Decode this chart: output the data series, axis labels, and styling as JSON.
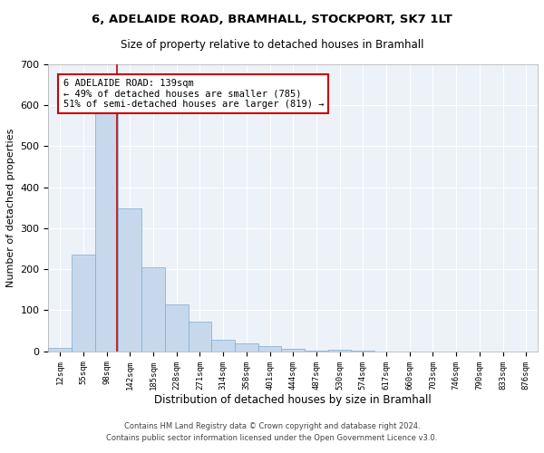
{
  "title": "6, ADELAIDE ROAD, BRAMHALL, STOCKPORT, SK7 1LT",
  "subtitle": "Size of property relative to detached houses in Bramhall",
  "xlabel": "Distribution of detached houses by size in Bramhall",
  "ylabel": "Number of detached properties",
  "bar_color": "#c8d8ec",
  "bar_edge_color": "#7aaad0",
  "background_color": "#edf2f9",
  "grid_color": "#ffffff",
  "tick_labels": [
    "12sqm",
    "55sqm",
    "98sqm",
    "142sqm",
    "185sqm",
    "228sqm",
    "271sqm",
    "314sqm",
    "358sqm",
    "401sqm",
    "444sqm",
    "487sqm",
    "530sqm",
    "574sqm",
    "617sqm",
    "660sqm",
    "703sqm",
    "746sqm",
    "790sqm",
    "833sqm",
    "876sqm"
  ],
  "bar_heights": [
    8,
    235,
    580,
    348,
    205,
    115,
    72,
    28,
    18,
    12,
    5,
    2,
    4,
    1,
    0,
    0,
    0,
    0,
    0,
    0,
    0
  ],
  "ylim": [
    0,
    700
  ],
  "yticks": [
    0,
    100,
    200,
    300,
    400,
    500,
    600,
    700
  ],
  "annotation_text": "6 ADELAIDE ROAD: 139sqm\n← 49% of detached houses are smaller (785)\n51% of semi-detached houses are larger (819) →",
  "annotation_box_color": "#ffffff",
  "annotation_box_edge_color": "#cc0000",
  "property_line_color": "#cc0000",
  "footer_line1": "Contains HM Land Registry data © Crown copyright and database right 2024.",
  "footer_line2": "Contains public sector information licensed under the Open Government Licence v3.0."
}
